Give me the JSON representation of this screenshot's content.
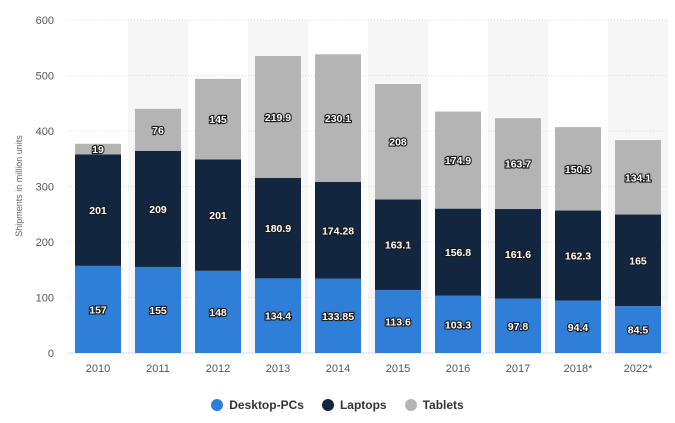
{
  "chart_data": {
    "type": "bar",
    "stacked": true,
    "categories": [
      "2010",
      "2011",
      "2012",
      "2013",
      "2014",
      "2015",
      "2016",
      "2017",
      "2018*",
      "2022*"
    ],
    "series": [
      {
        "name": "Desktop-PCs",
        "color": "#2f7ed8",
        "values": [
          157,
          155,
          148,
          134.4,
          133.85,
          113.6,
          103.3,
          97.8,
          94.4,
          84.5
        ]
      },
      {
        "name": "Laptops",
        "color": "#12263f",
        "values": [
          201,
          209,
          201,
          180.9,
          174.28,
          163.1,
          156.8,
          161.6,
          162.3,
          165
        ]
      },
      {
        "name": "Tablets",
        "color": "#b4b4b4",
        "values": [
          19,
          76,
          145,
          219.9,
          230.1,
          208,
          174.9,
          163.7,
          150.3,
          134.1
        ]
      }
    ],
    "ylabel": "Shipments in million units",
    "ylim": [
      0,
      600
    ],
    "yticks": [
      0,
      100,
      200,
      300,
      400,
      500,
      600
    ],
    "grid": true,
    "legend": "bottom-center"
  }
}
